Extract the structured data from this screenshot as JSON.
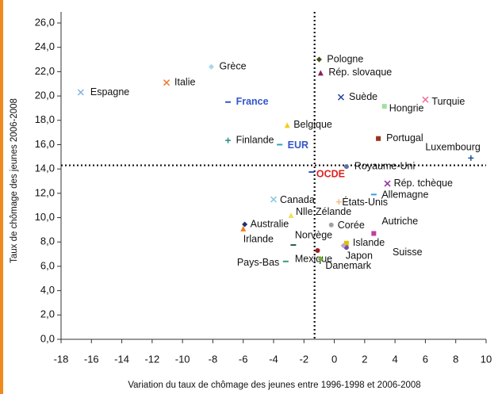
{
  "chart_data": {
    "type": "scatter",
    "x_label": "Variation du taux de chômage des jeunes entre 1996-1998 et 2006-2008",
    "y_label": "Taux de chômage des jeunes 2006-2008",
    "xlim": [
      -18,
      10
    ],
    "ylim": [
      0,
      26
    ],
    "xticks": [
      -18,
      -16,
      -14,
      -12,
      -10,
      -8,
      -6,
      -4,
      -2,
      0,
      2,
      4,
      6,
      8,
      10
    ],
    "yticks": [
      {
        "value": 0,
        "label": "0,0"
      },
      {
        "value": 2,
        "label": "2,0"
      },
      {
        "value": 4,
        "label": "4,0"
      },
      {
        "value": 6,
        "label": "6,0"
      },
      {
        "value": 8,
        "label": "8,0"
      },
      {
        "value": 10,
        "label": "10,0"
      },
      {
        "value": 12,
        "label": "12,0"
      },
      {
        "value": 14,
        "label": "14,0"
      },
      {
        "value": 16,
        "label": "16,0"
      },
      {
        "value": 18,
        "label": "18,0"
      },
      {
        "value": 20,
        "label": "20,0"
      },
      {
        "value": 22,
        "label": "22,0"
      },
      {
        "value": 24,
        "label": "24,0"
      },
      {
        "value": 26,
        "label": "26,0"
      }
    ],
    "vline": -1.3,
    "hline": 14.3,
    "points": [
      {
        "label": "Espagne",
        "x": -16.7,
        "y": 20.3,
        "color": "#7fb3e0",
        "marker": "x"
      },
      {
        "label": "Italie",
        "x": -11.05,
        "y": 21.1,
        "color": "#f07830",
        "marker": "x"
      },
      {
        "label": "Grèce",
        "x": -8.1,
        "y": 22.4,
        "color": "#a8d8f0",
        "marker": "diamond"
      },
      {
        "label": "France",
        "x": -7.0,
        "y": 19.5,
        "color": "#3355cc",
        "marker": "dash",
        "label_color": "#3355cc",
        "bold": true
      },
      {
        "label": "Finlande",
        "x": -7.0,
        "y": 16.35,
        "color": "#2a8c8c",
        "marker": "plus"
      },
      {
        "label": "Pologne",
        "x": -1.0,
        "y": 23.0,
        "color": "#4a4a1a",
        "marker": "diamond"
      },
      {
        "label": "Rép. slovaque",
        "x": -0.9,
        "y": 21.9,
        "color": "#8a2060",
        "marker": "triangle"
      },
      {
        "label": "Belgique",
        "x": -3.1,
        "y": 17.6,
        "color": "#f0d020",
        "marker": "triangle"
      },
      {
        "label": "EUR",
        "x": -3.6,
        "y": 16.0,
        "color": "#30a0c0",
        "marker": "dash",
        "label_color": "#3355cc",
        "bold": true
      },
      {
        "label": "OCDE",
        "x": -1.5,
        "y": 13.75,
        "color": "#3355cc",
        "marker": "dash",
        "label_color": "#e02020",
        "bold": true
      },
      {
        "label": "Suède",
        "x": 0.44,
        "y": 19.9,
        "color": "#2040a0",
        "marker": "x"
      },
      {
        "label": "Hongrie",
        "x": 3.3,
        "y": 19.15,
        "color": "#a0e0a0",
        "marker": "square"
      },
      {
        "label": "Turquie",
        "x": 6.0,
        "y": 19.7,
        "color": "#f070a0",
        "marker": "x"
      },
      {
        "label": "Portugal",
        "x": 2.9,
        "y": 16.5,
        "color": "#a03020",
        "marker": "square"
      },
      {
        "label": "Luxembourg",
        "x": 9.0,
        "y": 14.9,
        "color": "#2050a0",
        "marker": "plus"
      },
      {
        "label": "Royaume-Uni",
        "x": 0.8,
        "y": 14.2,
        "color": "#6070a0",
        "marker": "circle"
      },
      {
        "label": "Rép. tchèque",
        "x": 3.5,
        "y": 12.8,
        "color": "#9030a0",
        "marker": "x"
      },
      {
        "label": "Allemagne",
        "x": 2.6,
        "y": 11.9,
        "color": "#30a0e0",
        "marker": "dash"
      },
      {
        "label": "États-Unis",
        "x": 0.3,
        "y": 11.3,
        "color": "#f0c080",
        "marker": "plus"
      },
      {
        "label": "Canada",
        "x": -4.0,
        "y": 11.5,
        "color": "#80c8e0",
        "marker": "x"
      },
      {
        "label": "Nlle Zélande",
        "x": -2.85,
        "y": 10.2,
        "color": "#f0e060",
        "marker": "triangle"
      },
      {
        "label": "Australie",
        "x": -5.9,
        "y": 9.45,
        "color": "#203070",
        "marker": "diamond"
      },
      {
        "label": "Irlande",
        "x": -6.0,
        "y": 9.1,
        "color": "#f08020",
        "marker": "triangle"
      },
      {
        "label": "Corée",
        "x": -0.2,
        "y": 9.4,
        "color": "#a0a0a0",
        "marker": "circle"
      },
      {
        "label": "Autriche",
        "x": 2.6,
        "y": 8.7,
        "color": "#c040a0",
        "marker": "square"
      },
      {
        "label": "Norvège",
        "x": -2.7,
        "y": 7.75,
        "color": "#206040",
        "marker": "dash"
      },
      {
        "label": "Islande",
        "x": 0.8,
        "y": 7.9,
        "color": "#e0c000",
        "marker": "square"
      },
      {
        "label": "Japon",
        "x": 0.8,
        "y": 7.55,
        "color": "#7050a0",
        "marker": "circle"
      },
      {
        "label": "Suisse",
        "x": 0.6,
        "y": 7.7,
        "color": "#c0a0d0",
        "marker": "diamond"
      },
      {
        "label": "Mexique",
        "x": -1.1,
        "y": 7.3,
        "color": "#a02020",
        "marker": "circle"
      },
      {
        "label": "Danemark",
        "x": -0.9,
        "y": 6.6,
        "color": "#70b030",
        "marker": "diamond"
      },
      {
        "label": "Pays-Bas",
        "x": -3.2,
        "y": 6.4,
        "color": "#30a070",
        "marker": "dash"
      }
    ]
  }
}
